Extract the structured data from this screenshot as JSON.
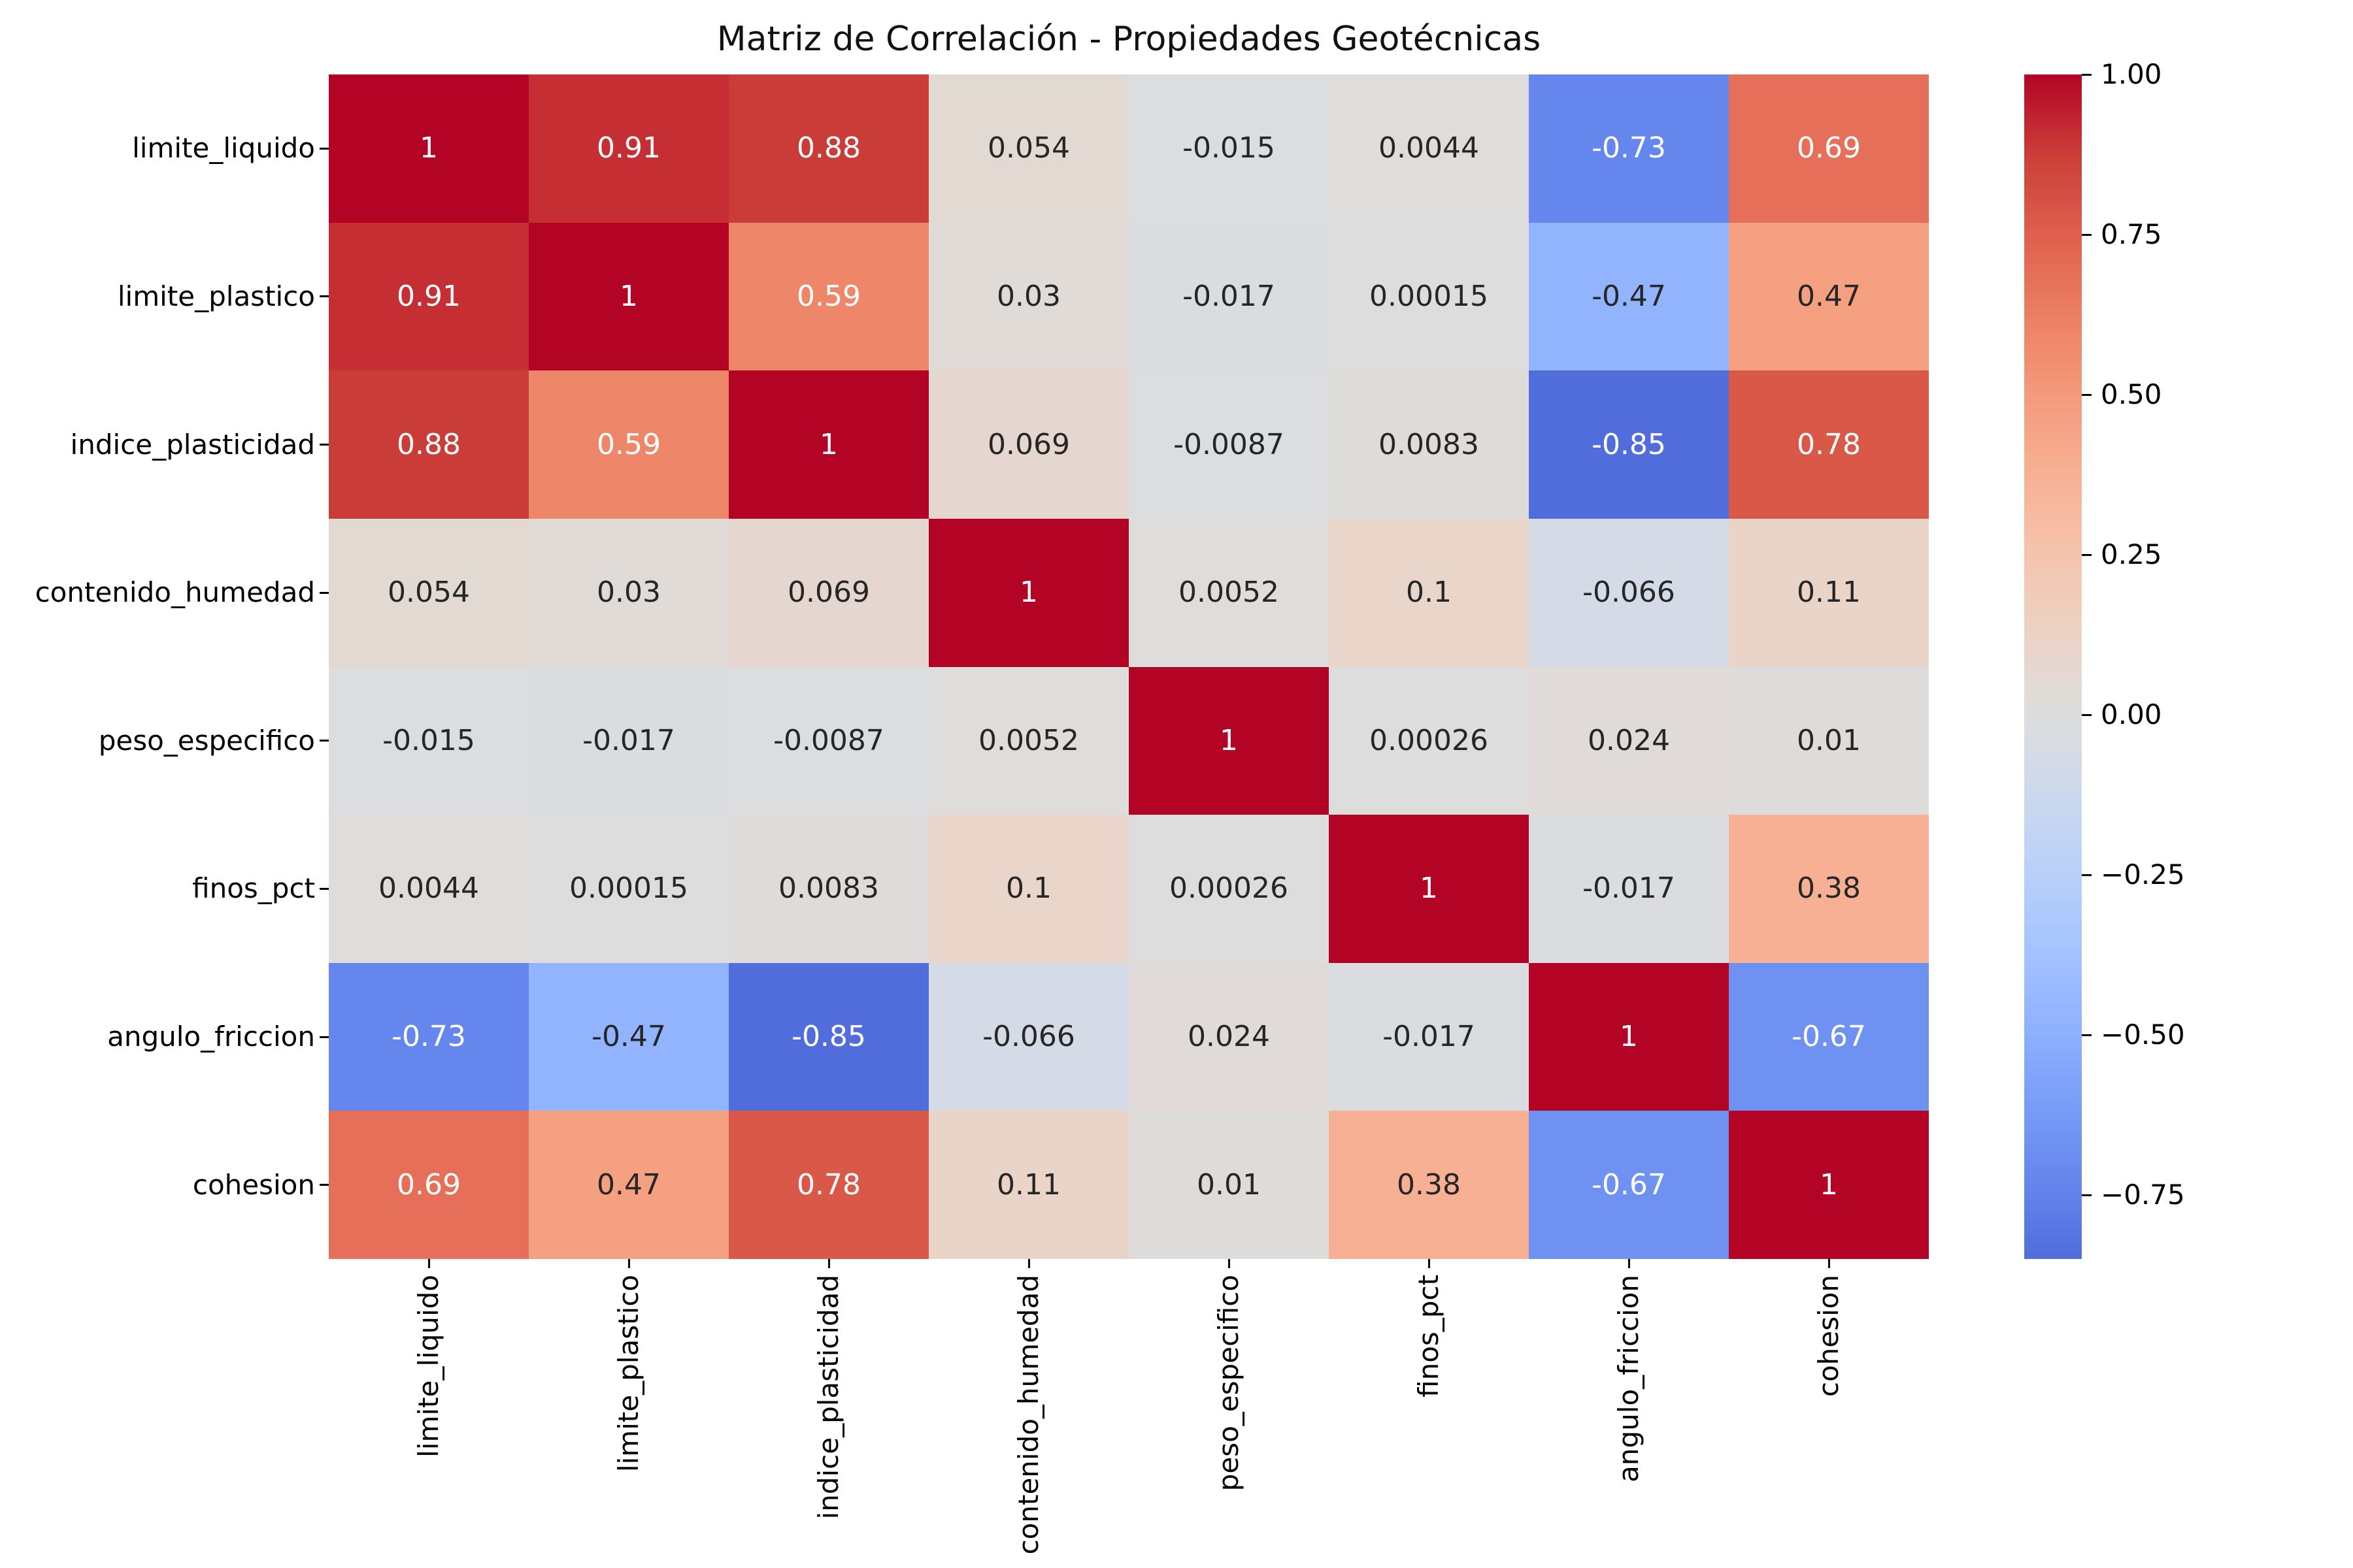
{
  "title": "Matriz de Correlación - Propiedades Geotécnicas",
  "chart_data": {
    "type": "heatmap",
    "title": "Matriz de Correlación - Propiedades Geotécnicas",
    "x_labels": [
      "limite_liquido",
      "limite_plastico",
      "indice_plasticidad",
      "contenido_humedad",
      "peso_especifico",
      "finos_pct",
      "angulo_friccion",
      "cohesion"
    ],
    "y_labels": [
      "limite_liquido",
      "limite_plastico",
      "indice_plasticidad",
      "contenido_humedad",
      "peso_especifico",
      "finos_pct",
      "angulo_friccion",
      "cohesion"
    ],
    "matrix": [
      [
        1,
        0.91,
        0.88,
        0.054,
        -0.015,
        0.0044,
        -0.73,
        0.69
      ],
      [
        0.91,
        1,
        0.59,
        0.03,
        -0.017,
        0.00015,
        -0.47,
        0.47
      ],
      [
        0.88,
        0.59,
        1,
        0.069,
        -0.0087,
        0.0083,
        -0.85,
        0.78
      ],
      [
        0.054,
        0.03,
        0.069,
        1,
        0.0052,
        0.1,
        -0.066,
        0.11
      ],
      [
        -0.015,
        -0.017,
        -0.0087,
        0.0052,
        1,
        0.00026,
        0.024,
        0.01
      ],
      [
        0.0044,
        0.00015,
        0.0083,
        0.1,
        0.00026,
        1,
        -0.017,
        0.38
      ],
      [
        -0.73,
        -0.47,
        -0.85,
        -0.066,
        0.024,
        -0.017,
        1,
        -0.67
      ],
      [
        0.69,
        0.47,
        0.78,
        0.11,
        0.01,
        0.38,
        -0.67,
        1
      ]
    ],
    "cell_labels": [
      [
        "1",
        "0.91",
        "0.88",
        "0.054",
        "-0.015",
        "0.0044",
        "-0.73",
        "0.69"
      ],
      [
        "0.91",
        "1",
        "0.59",
        "0.03",
        "-0.017",
        "0.00015",
        "-0.47",
        "0.47"
      ],
      [
        "0.88",
        "0.59",
        "1",
        "0.069",
        "-0.0087",
        "0.0083",
        "-0.85",
        "0.78"
      ],
      [
        "0.054",
        "0.03",
        "0.069",
        "1",
        "0.0052",
        "0.1",
        "-0.066",
        "0.11"
      ],
      [
        "-0.015",
        "-0.017",
        "-0.0087",
        "0.0052",
        "1",
        "0.00026",
        "0.024",
        "0.01"
      ],
      [
        "0.0044",
        "0.00015",
        "0.0083",
        "0.1",
        "0.00026",
        "1",
        "-0.017",
        "0.38"
      ],
      [
        "-0.73",
        "-0.47",
        "-0.85",
        "-0.066",
        "0.024",
        "-0.017",
        "1",
        "-0.67"
      ],
      [
        "0.69",
        "0.47",
        "0.78",
        "0.11",
        "0.01",
        "0.38",
        "-0.67",
        "1"
      ]
    ],
    "colormap": "coolwarm",
    "center": 0,
    "vmin": -0.85,
    "vmax": 1.0,
    "colorbar_ticks": [
      "1.00",
      "0.75",
      "0.50",
      "0.25",
      "0.00",
      "−0.25",
      "−0.50",
      "−0.75"
    ],
    "colorbar_tick_values": [
      1.0,
      0.75,
      0.5,
      0.25,
      0.0,
      -0.25,
      -0.5,
      -0.75
    ],
    "legend_position": "right",
    "grid": false,
    "colors": {
      "max_red": "#b40426",
      "min_displayed_blue": "#536edb",
      "near_zero_gray": "#dcdcda",
      "annotation_dark": "#262626",
      "annotation_light": "#ffffff"
    }
  }
}
